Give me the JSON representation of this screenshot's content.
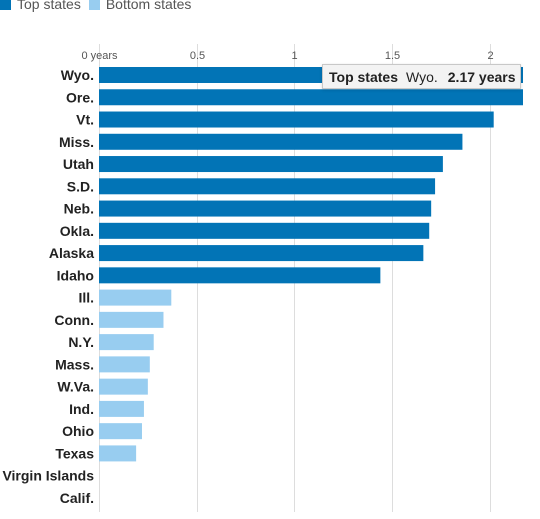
{
  "legend": {
    "top_label": "Top states",
    "bottom_label": "Bottom states"
  },
  "colors": {
    "top": "#0274b6",
    "bottom": "#98cdf0",
    "grid": "#dddddd"
  },
  "tooltip": {
    "series": "Top states",
    "category": "Wyo.",
    "value": "2.17 years"
  },
  "chart_data": {
    "type": "bar",
    "orientation": "horizontal",
    "xlim": [
      0,
      2.17
    ],
    "x_ticks": [
      {
        "value": 0,
        "label": "0 years"
      },
      {
        "value": 0.5,
        "label": "0.5"
      },
      {
        "value": 1,
        "label": "1"
      },
      {
        "value": 1.5,
        "label": "1.5"
      },
      {
        "value": 2,
        "label": "2"
      }
    ],
    "grid": true,
    "legend_position": "top-left",
    "categories": [
      "Wyo.",
      "Ore.",
      "Vt.",
      "Miss.",
      "Utah",
      "S.D.",
      "Neb.",
      "Okla.",
      "Alaska",
      "Idaho",
      "Ill.",
      "Conn.",
      "N.Y.",
      "Mass.",
      "W.Va.",
      "Ind.",
      "Ohio",
      "Texas",
      "Virgin Islands",
      "Calif."
    ],
    "series": [
      {
        "name": "Top states",
        "values": [
          2.17,
          2.17,
          2.02,
          1.86,
          1.76,
          1.72,
          1.7,
          1.69,
          1.66,
          1.44,
          null,
          null,
          null,
          null,
          null,
          null,
          null,
          null,
          null,
          null
        ]
      },
      {
        "name": "Bottom states",
        "values": [
          null,
          null,
          null,
          null,
          null,
          null,
          null,
          null,
          null,
          null,
          0.37,
          0.33,
          0.28,
          0.26,
          0.25,
          0.23,
          0.22,
          0.19,
          0,
          0
        ]
      }
    ]
  }
}
